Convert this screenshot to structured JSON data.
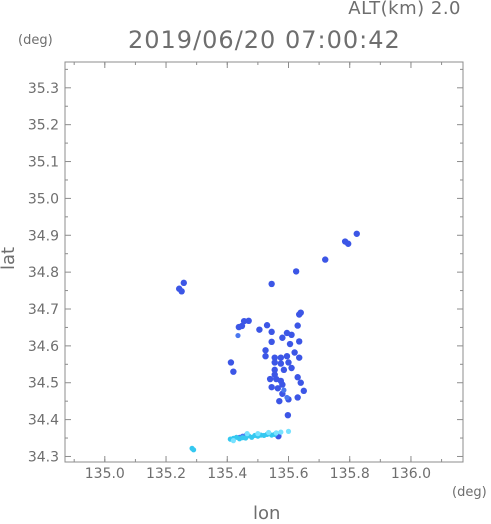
{
  "header": {
    "altitude": "ALT(km) 2.0",
    "datetime": "2019/06/20 07:00:42"
  },
  "chart_data": {
    "type": "scatter",
    "title": "2019/06/20 07:00:42",
    "xlabel": "lon",
    "ylabel": "lat",
    "xunit": "(deg)",
    "yunit": "(deg)",
    "xlim": [
      134.87,
      136.17
    ],
    "ylim": [
      34.285,
      35.37
    ],
    "xticks": [
      135.0,
      135.2,
      135.4,
      135.6,
      135.8,
      136.0
    ],
    "yticks": [
      34.3,
      34.4,
      34.5,
      34.6,
      34.7,
      34.8,
      34.9,
      35.0,
      35.1,
      35.2,
      35.3
    ],
    "xtick_labels": [
      "135.0",
      "135.2",
      "135.4",
      "135.6",
      "135.8",
      "136.0"
    ],
    "ytick_labels": [
      "34.3",
      "34.4",
      "34.5",
      "34.6",
      "34.7",
      "34.8",
      "34.9",
      "35.0",
      "35.1",
      "35.2",
      "35.3"
    ],
    "grid": false,
    "colors": {
      "axis": "#8c8c8c",
      "strong": "#3c56e6",
      "medium": "#4a78f0",
      "weak": "#35c8f0",
      "faint": "#78e2ff"
    },
    "series": [
      {
        "values": [
          [
            135.785,
            34.883
          ],
          [
            135.795,
            34.877
          ],
          [
            135.823,
            34.904
          ],
          [
            135.72,
            34.834
          ],
          [
            135.243,
            34.755
          ],
          [
            135.251,
            34.748
          ],
          [
            135.258,
            34.771
          ],
          [
            135.625,
            34.802
          ],
          [
            135.545,
            34.768
          ],
          [
            135.545,
            34.638
          ],
          [
            135.505,
            34.644
          ],
          [
            135.635,
            34.685
          ],
          [
            135.64,
            34.69
          ],
          [
            135.63,
            34.655
          ],
          [
            135.455,
            34.667
          ],
          [
            135.47,
            34.668
          ],
          [
            135.448,
            34.654
          ],
          [
            135.438,
            34.651
          ],
          [
            135.53,
            34.656
          ],
          [
            135.545,
            34.611
          ],
          [
            135.58,
            34.622
          ],
          [
            135.595,
            34.635
          ],
          [
            135.61,
            34.63
          ],
          [
            135.635,
            34.612
          ],
          [
            135.605,
            34.605
          ],
          [
            135.62,
            34.582
          ],
          [
            135.635,
            34.568
          ],
          [
            135.525,
            34.588
          ],
          [
            135.525,
            34.572
          ],
          [
            135.555,
            34.568
          ],
          [
            135.575,
            34.568
          ],
          [
            135.595,
            34.572
          ],
          [
            135.6,
            34.555
          ],
          [
            135.555,
            34.555
          ],
          [
            135.575,
            34.552
          ],
          [
            135.585,
            34.535
          ],
          [
            135.555,
            34.535
          ],
          [
            135.555,
            34.522
          ],
          [
            135.54,
            34.51
          ],
          [
            135.56,
            34.51
          ],
          [
            135.575,
            34.505
          ],
          [
            135.58,
            34.495
          ],
          [
            135.565,
            34.485
          ],
          [
            135.545,
            34.488
          ],
          [
            135.63,
            34.515
          ],
          [
            135.64,
            34.5
          ],
          [
            135.65,
            34.478
          ],
          [
            135.63,
            34.46
          ],
          [
            135.6,
            34.455
          ],
          [
            135.58,
            34.47
          ],
          [
            135.57,
            34.45
          ],
          [
            135.42,
            34.53
          ],
          [
            135.412,
            34.555
          ],
          [
            135.61,
            34.54
          ],
          [
            135.598,
            34.412
          ],
          [
            135.567,
            34.355
          ]
        ]
      },
      {
        "values": [
          [
            135.585,
            34.48
          ],
          [
            135.595,
            34.46
          ],
          [
            135.435,
            34.628
          ],
          [
            135.44,
            34.352
          ],
          [
            135.45,
            34.355
          ],
          [
            135.46,
            34.357
          ]
        ]
      },
      {
        "values": [
          [
            135.285,
            34.322
          ],
          [
            135.29,
            34.318
          ],
          [
            135.41,
            34.347
          ],
          [
            135.42,
            34.349
          ],
          [
            135.43,
            34.352
          ],
          [
            135.44,
            34.348
          ],
          [
            135.45,
            34.351
          ],
          [
            135.46,
            34.35
          ],
          [
            135.47,
            34.356
          ],
          [
            135.48,
            34.352
          ],
          [
            135.49,
            34.357
          ],
          [
            135.5,
            34.355
          ],
          [
            135.51,
            34.358
          ],
          [
            135.52,
            34.357
          ],
          [
            135.53,
            34.36
          ],
          [
            135.545,
            34.358
          ],
          [
            135.555,
            34.36
          ]
        ]
      },
      {
        "values": [
          [
            135.42,
            34.343
          ],
          [
            135.465,
            34.362
          ],
          [
            135.5,
            34.362
          ],
          [
            135.535,
            34.365
          ],
          [
            135.56,
            34.364
          ],
          [
            135.575,
            34.366
          ],
          [
            135.6,
            34.368
          ]
        ]
      }
    ]
  }
}
